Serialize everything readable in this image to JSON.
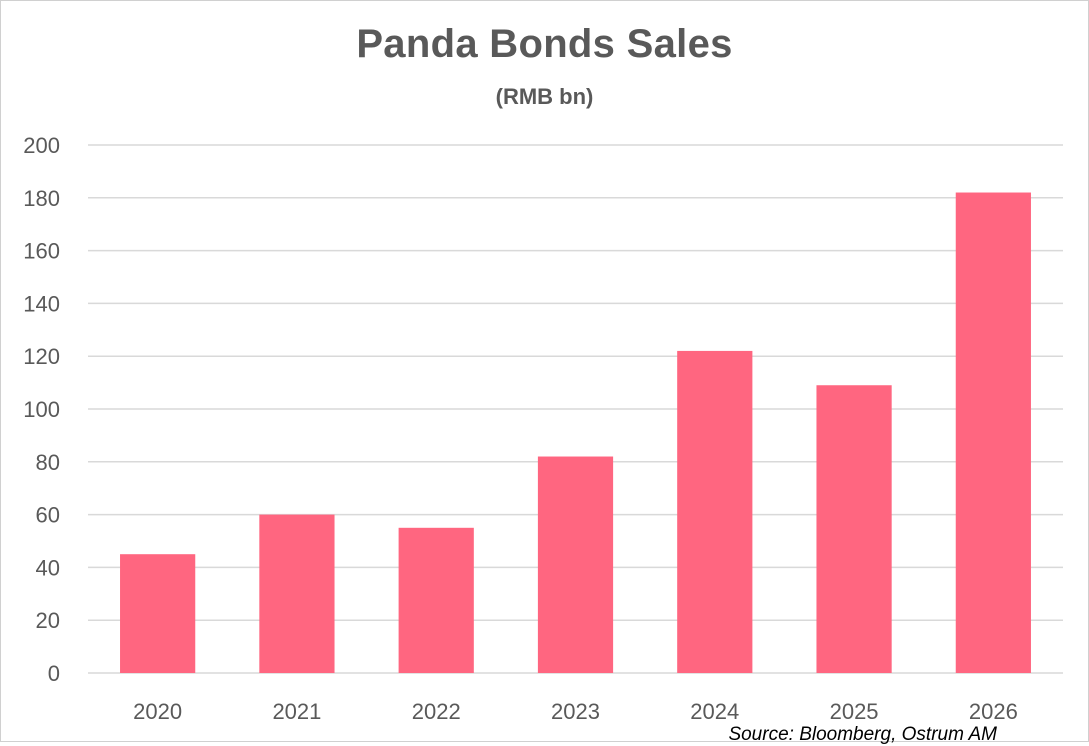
{
  "chart_data": {
    "type": "bar",
    "title": "Panda Bonds Sales",
    "subtitle": "(RMB bn)",
    "categories": [
      "2020",
      "2021",
      "2022",
      "2023",
      "2024",
      "2025",
      "2026"
    ],
    "values": [
      45,
      60,
      55,
      82,
      122,
      109,
      182
    ],
    "ylim": [
      0,
      200
    ],
    "yticks": [
      0,
      20,
      40,
      60,
      80,
      100,
      120,
      140,
      160,
      180,
      200
    ],
    "grid": true,
    "bar_color": "#ff6680",
    "grid_color": "#d9d9d9",
    "source": "Source: Bloomberg, Ostrum AM"
  }
}
